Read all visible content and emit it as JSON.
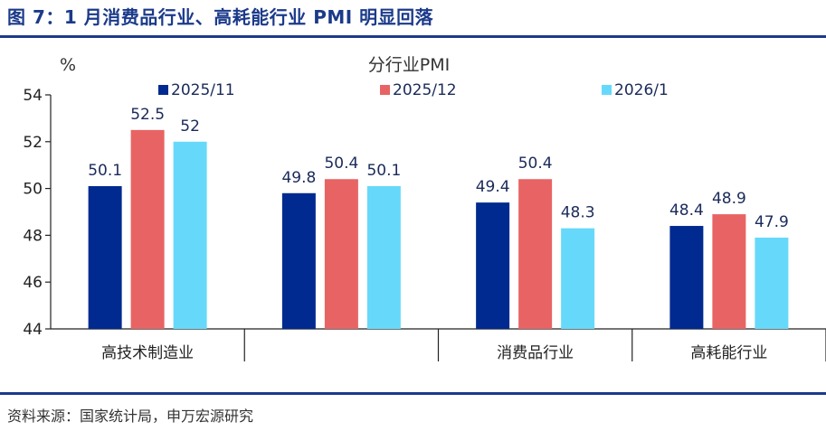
{
  "header": {
    "title": "图 7：1 月消费品行业、高耗能行业 PMI 明显回落"
  },
  "footer": {
    "source": "资料来源：国家统计局，申万宏源研究"
  },
  "chart_data": {
    "type": "bar",
    "title": "分行业PMI",
    "ylabel": "%",
    "xlabel": "",
    "ylim": [
      44,
      54
    ],
    "yticks": [
      44,
      46,
      48,
      50,
      52,
      54
    ],
    "categories": [
      "高技术制造业",
      "",
      "消费品行业",
      "高耗能行业"
    ],
    "series": [
      {
        "name": "2025/11",
        "color": "#002a8f",
        "values": [
          50.1,
          49.8,
          49.4,
          48.4
        ],
        "labels": [
          "50.1",
          "49.8",
          "49.4",
          "48.4"
        ]
      },
      {
        "name": "2025/12",
        "color": "#e86464",
        "values": [
          52.5,
          50.4,
          50.4,
          48.9
        ],
        "labels": [
          "52.5",
          "50.4",
          "50.4",
          "48.9"
        ]
      },
      {
        "name": "2026/1",
        "color": "#66d9fa",
        "values": [
          52,
          50.1,
          48.3,
          47.9
        ],
        "labels": [
          "52",
          "50.1",
          "48.3",
          "47.9"
        ]
      }
    ],
    "legend": "top",
    "grid": false
  }
}
